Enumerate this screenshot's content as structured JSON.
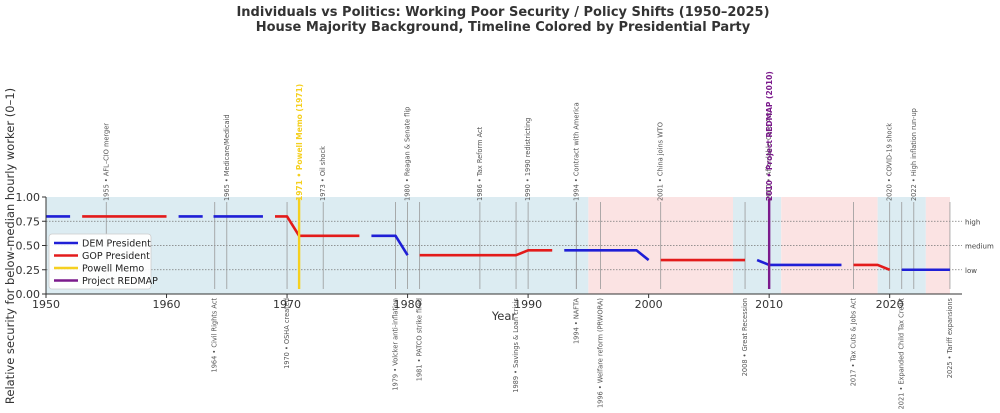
{
  "chart_data": {
    "type": "line",
    "title": "Individuals vs Politics: Working Poor Security / Policy Shifts (1950–2025)",
    "subtitle": "House Majority Background, Timeline Colored by Presidential Party",
    "xlabel": "Year",
    "ylabel": "Relative security for below-median hourly worker (0–1)",
    "xlim": [
      1950,
      2026
    ],
    "ylim": [
      0,
      1
    ],
    "x_ticks": [
      1950,
      1960,
      1970,
      1980,
      1990,
      2000,
      2010,
      2020
    ],
    "y_ticks": [
      "0.00",
      "0.25",
      "0.50",
      "0.75",
      "1.00"
    ],
    "reference_lines": [
      {
        "value": 0.25,
        "label": "low"
      },
      {
        "value": 0.5,
        "label": "medium"
      },
      {
        "value": 0.75,
        "label": "high"
      }
    ],
    "house_majority_bands": [
      {
        "party": "DEM",
        "start": 1950,
        "end": 1995
      },
      {
        "party": "GOP",
        "start": 1995,
        "end": 2007
      },
      {
        "party": "DEM",
        "start": 2007,
        "end": 2011
      },
      {
        "party": "GOP",
        "start": 2011,
        "end": 2019
      },
      {
        "party": "DEM",
        "start": 2019,
        "end": 2023
      },
      {
        "party": "GOP",
        "start": 2023,
        "end": 2025
      }
    ],
    "series": [
      {
        "name": "DEM President",
        "color": "#1f1fd6",
        "segments": [
          [
            [
              1950,
              0.8
            ],
            [
              1952,
              0.8
            ]
          ],
          [
            [
              1961,
              0.8
            ],
            [
              1963,
              0.8
            ]
          ],
          [
            [
              1963.9,
              0.8
            ],
            [
              1968,
              0.8
            ]
          ],
          [
            [
              1977,
              0.6
            ],
            [
              1979,
              0.6
            ],
            [
              1980,
              0.4
            ]
          ],
          [
            [
              1993,
              0.45
            ],
            [
              1999,
              0.45
            ],
            [
              2000,
              0.35
            ]
          ],
          [
            [
              2009,
              0.35
            ],
            [
              2010,
              0.3
            ],
            [
              2016,
              0.3
            ]
          ],
          [
            [
              2021,
              0.25
            ],
            [
              2025,
              0.25
            ]
          ]
        ]
      },
      {
        "name": "GOP President",
        "color": "#e31b1b",
        "segments": [
          [
            [
              1953,
              0.8
            ],
            [
              1960,
              0.8
            ]
          ],
          [
            [
              1969,
              0.8
            ],
            [
              1970,
              0.8
            ],
            [
              1971,
              0.6
            ],
            [
              1976,
              0.6
            ]
          ],
          [
            [
              1981,
              0.4
            ],
            [
              1989,
              0.4
            ],
            [
              1990,
              0.45
            ],
            [
              1992,
              0.45
            ]
          ],
          [
            [
              2001,
              0.35
            ],
            [
              2008,
              0.35
            ]
          ],
          [
            [
              2017,
              0.3
            ],
            [
              2019,
              0.3
            ],
            [
              2020,
              0.25
            ]
          ]
        ]
      }
    ],
    "highlight_events": [
      {
        "name": "Powell Memo",
        "year": 1971,
        "color": "#f5d020",
        "label": "1971 • Powell Memo (1971)"
      },
      {
        "name": "Project REDMAP",
        "year": 2010,
        "color": "#7b1a8c",
        "label": "2010 • Project REDMAP (2010)"
      }
    ],
    "events": [
      {
        "year": 1955,
        "label": "1955 • AFL–CIO merger",
        "position": "above"
      },
      {
        "year": 1964,
        "label": "1964 • Civil Rights Act",
        "position": "below"
      },
      {
        "year": 1965,
        "label": "1965 • Medicare/Medicaid",
        "position": "above"
      },
      {
        "year": 1970,
        "label": "1970 • OSHA created",
        "position": "below"
      },
      {
        "year": 1973,
        "label": "1973 • Oil shock",
        "position": "above"
      },
      {
        "year": 1979,
        "label": "1979 • Volcker anti-inflation",
        "position": "below"
      },
      {
        "year": 1980,
        "label": "1980 • Reagan & Senate flip",
        "position": "above"
      },
      {
        "year": 1981,
        "label": "1981 • PATCO strike fired",
        "position": "below"
      },
      {
        "year": 1986,
        "label": "1986 • Tax Reform Act",
        "position": "above"
      },
      {
        "year": 1989,
        "label": "1989 • Savings & Loan crisis",
        "position": "below"
      },
      {
        "year": 1990,
        "label": "1990 • 1990 redistricting",
        "position": "above"
      },
      {
        "year": 1994,
        "label": "1994 • Contract with America",
        "position": "above"
      },
      {
        "year": 1994,
        "label": "1994 • NAFTA",
        "position": "below"
      },
      {
        "year": 1996,
        "label": "1996 • Welfare reform (PRWORA)",
        "position": "below"
      },
      {
        "year": 2001,
        "label": "2001 • China joins WTO",
        "position": "above"
      },
      {
        "year": 2008,
        "label": "2008 • Great Recession",
        "position": "below"
      },
      {
        "year": 2010,
        "label": "2010 • Affordable Care Act",
        "position": "above"
      },
      {
        "year": 2017,
        "label": "2017 • Tax Cuts & Jobs Act",
        "position": "below"
      },
      {
        "year": 2020,
        "label": "2020 • COVID-19 shock",
        "position": "above"
      },
      {
        "year": 2021,
        "label": "2021 • Expanded Child Tax Credit",
        "position": "below"
      },
      {
        "year": 2022,
        "label": "2022 • High inflation run-up",
        "position": "above"
      },
      {
        "year": 2025,
        "label": "2025 • Tariff expansions",
        "position": "below"
      }
    ],
    "legend": {
      "placement": "lower-left",
      "entries": [
        {
          "label": "DEM President",
          "color": "#1f1fd6"
        },
        {
          "label": "GOP President",
          "color": "#e31b1b"
        },
        {
          "label": "Powell Memo",
          "color": "#f5d020"
        },
        {
          "label": "Project REDMAP",
          "color": "#7b1a8c"
        }
      ]
    },
    "colors": {
      "dem_band": "#dcecf2",
      "gop_band": "#fbe3e3",
      "event_line": "#999999",
      "ref_line": "#777777"
    },
    "grid": false
  }
}
